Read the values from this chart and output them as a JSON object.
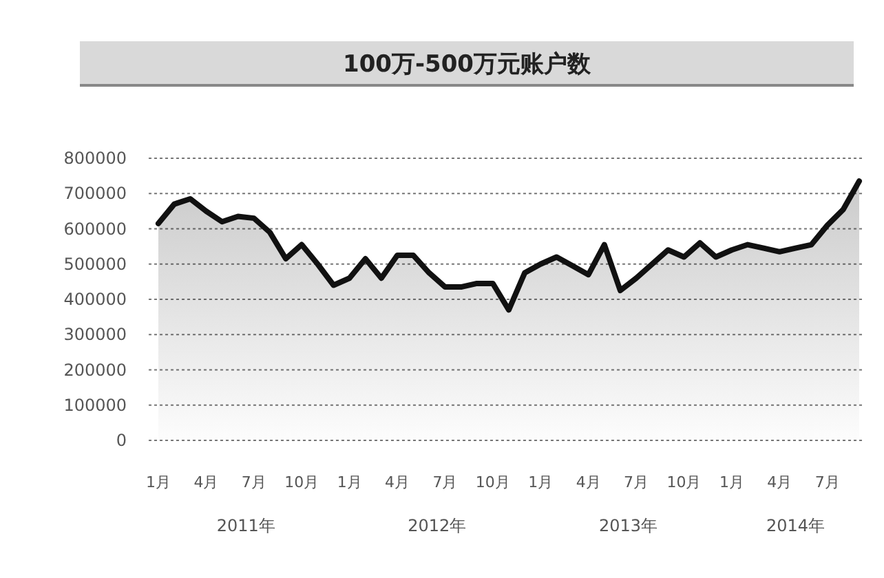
{
  "chart_data": {
    "type": "area",
    "title": "100万-500万元账户数",
    "categories": [
      "1月",
      null,
      null,
      "4月",
      null,
      null,
      "7月",
      null,
      null,
      "10月",
      null,
      null,
      "1月",
      null,
      null,
      "4月",
      null,
      null,
      "7月",
      null,
      null,
      "10月",
      null,
      null,
      "1月",
      null,
      null,
      "4月",
      null,
      null,
      "7月",
      null,
      null,
      "10月",
      null,
      null,
      "1月",
      null,
      null,
      "4月",
      null,
      null,
      "7月",
      null,
      null
    ],
    "series": [
      {
        "color": "#111111",
        "values": [
          615000,
          670000,
          685000,
          650000,
          620000,
          635000,
          630000,
          590000,
          515000,
          555000,
          500000,
          440000,
          460000,
          515000,
          460000,
          525000,
          525000,
          475000,
          435000,
          435000,
          445000,
          445000,
          370000,
          475000,
          500000,
          520000,
          495000,
          470000,
          555000,
          425000,
          460000,
          500000,
          540000,
          520000,
          560000,
          520000,
          540000,
          555000,
          545000,
          535000,
          545000,
          555000,
          610000,
          655000,
          735000
        ]
      }
    ],
    "ylim": [
      0,
      800000
    ],
    "yticks": [
      0,
      100000,
      200000,
      300000,
      400000,
      500000,
      600000,
      700000,
      800000
    ],
    "grid": "y",
    "annotations": [
      "2011年",
      "2012年",
      "2013年",
      "2014年"
    ]
  }
}
